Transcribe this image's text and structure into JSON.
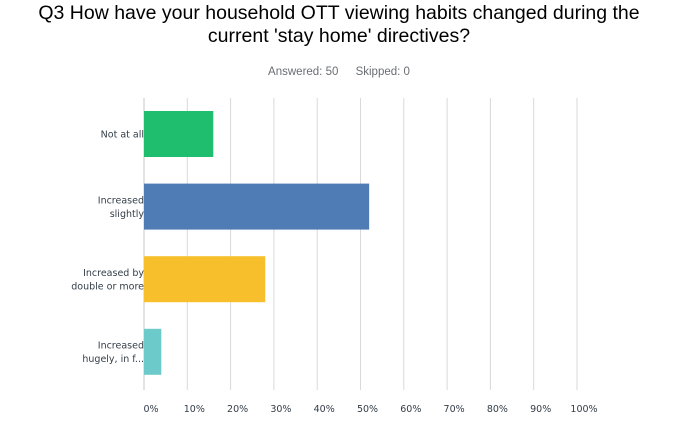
{
  "question": {
    "title_line1": "Q3 How have your household OTT viewing habits changed during the",
    "title_line2": "current 'stay home' directives?"
  },
  "meta": {
    "answered": "Answered: 50",
    "skipped": "Skipped: 0"
  },
  "colors": {
    "grid": "#d9d9d9",
    "axis": "#c7c7c7",
    "text": "#333e48"
  },
  "chart_data": {
    "type": "bar",
    "orientation": "horizontal",
    "categories": [
      [
        "Not at all"
      ],
      [
        "Increased",
        "slightly"
      ],
      [
        "Increased by",
        "double or more"
      ],
      [
        "Increased",
        "hugely, in f..."
      ]
    ],
    "values": [
      16,
      52,
      28,
      4
    ],
    "bar_colors": [
      "#1fbe6e",
      "#507cb6",
      "#f6bf2b",
      "#6ccbca"
    ],
    "xlim": [
      0,
      100
    ],
    "ticks": [
      "0%",
      "10%",
      "20%",
      "30%",
      "40%",
      "50%",
      "60%",
      "70%",
      "80%",
      "90%",
      "100%"
    ],
    "grid": true
  }
}
